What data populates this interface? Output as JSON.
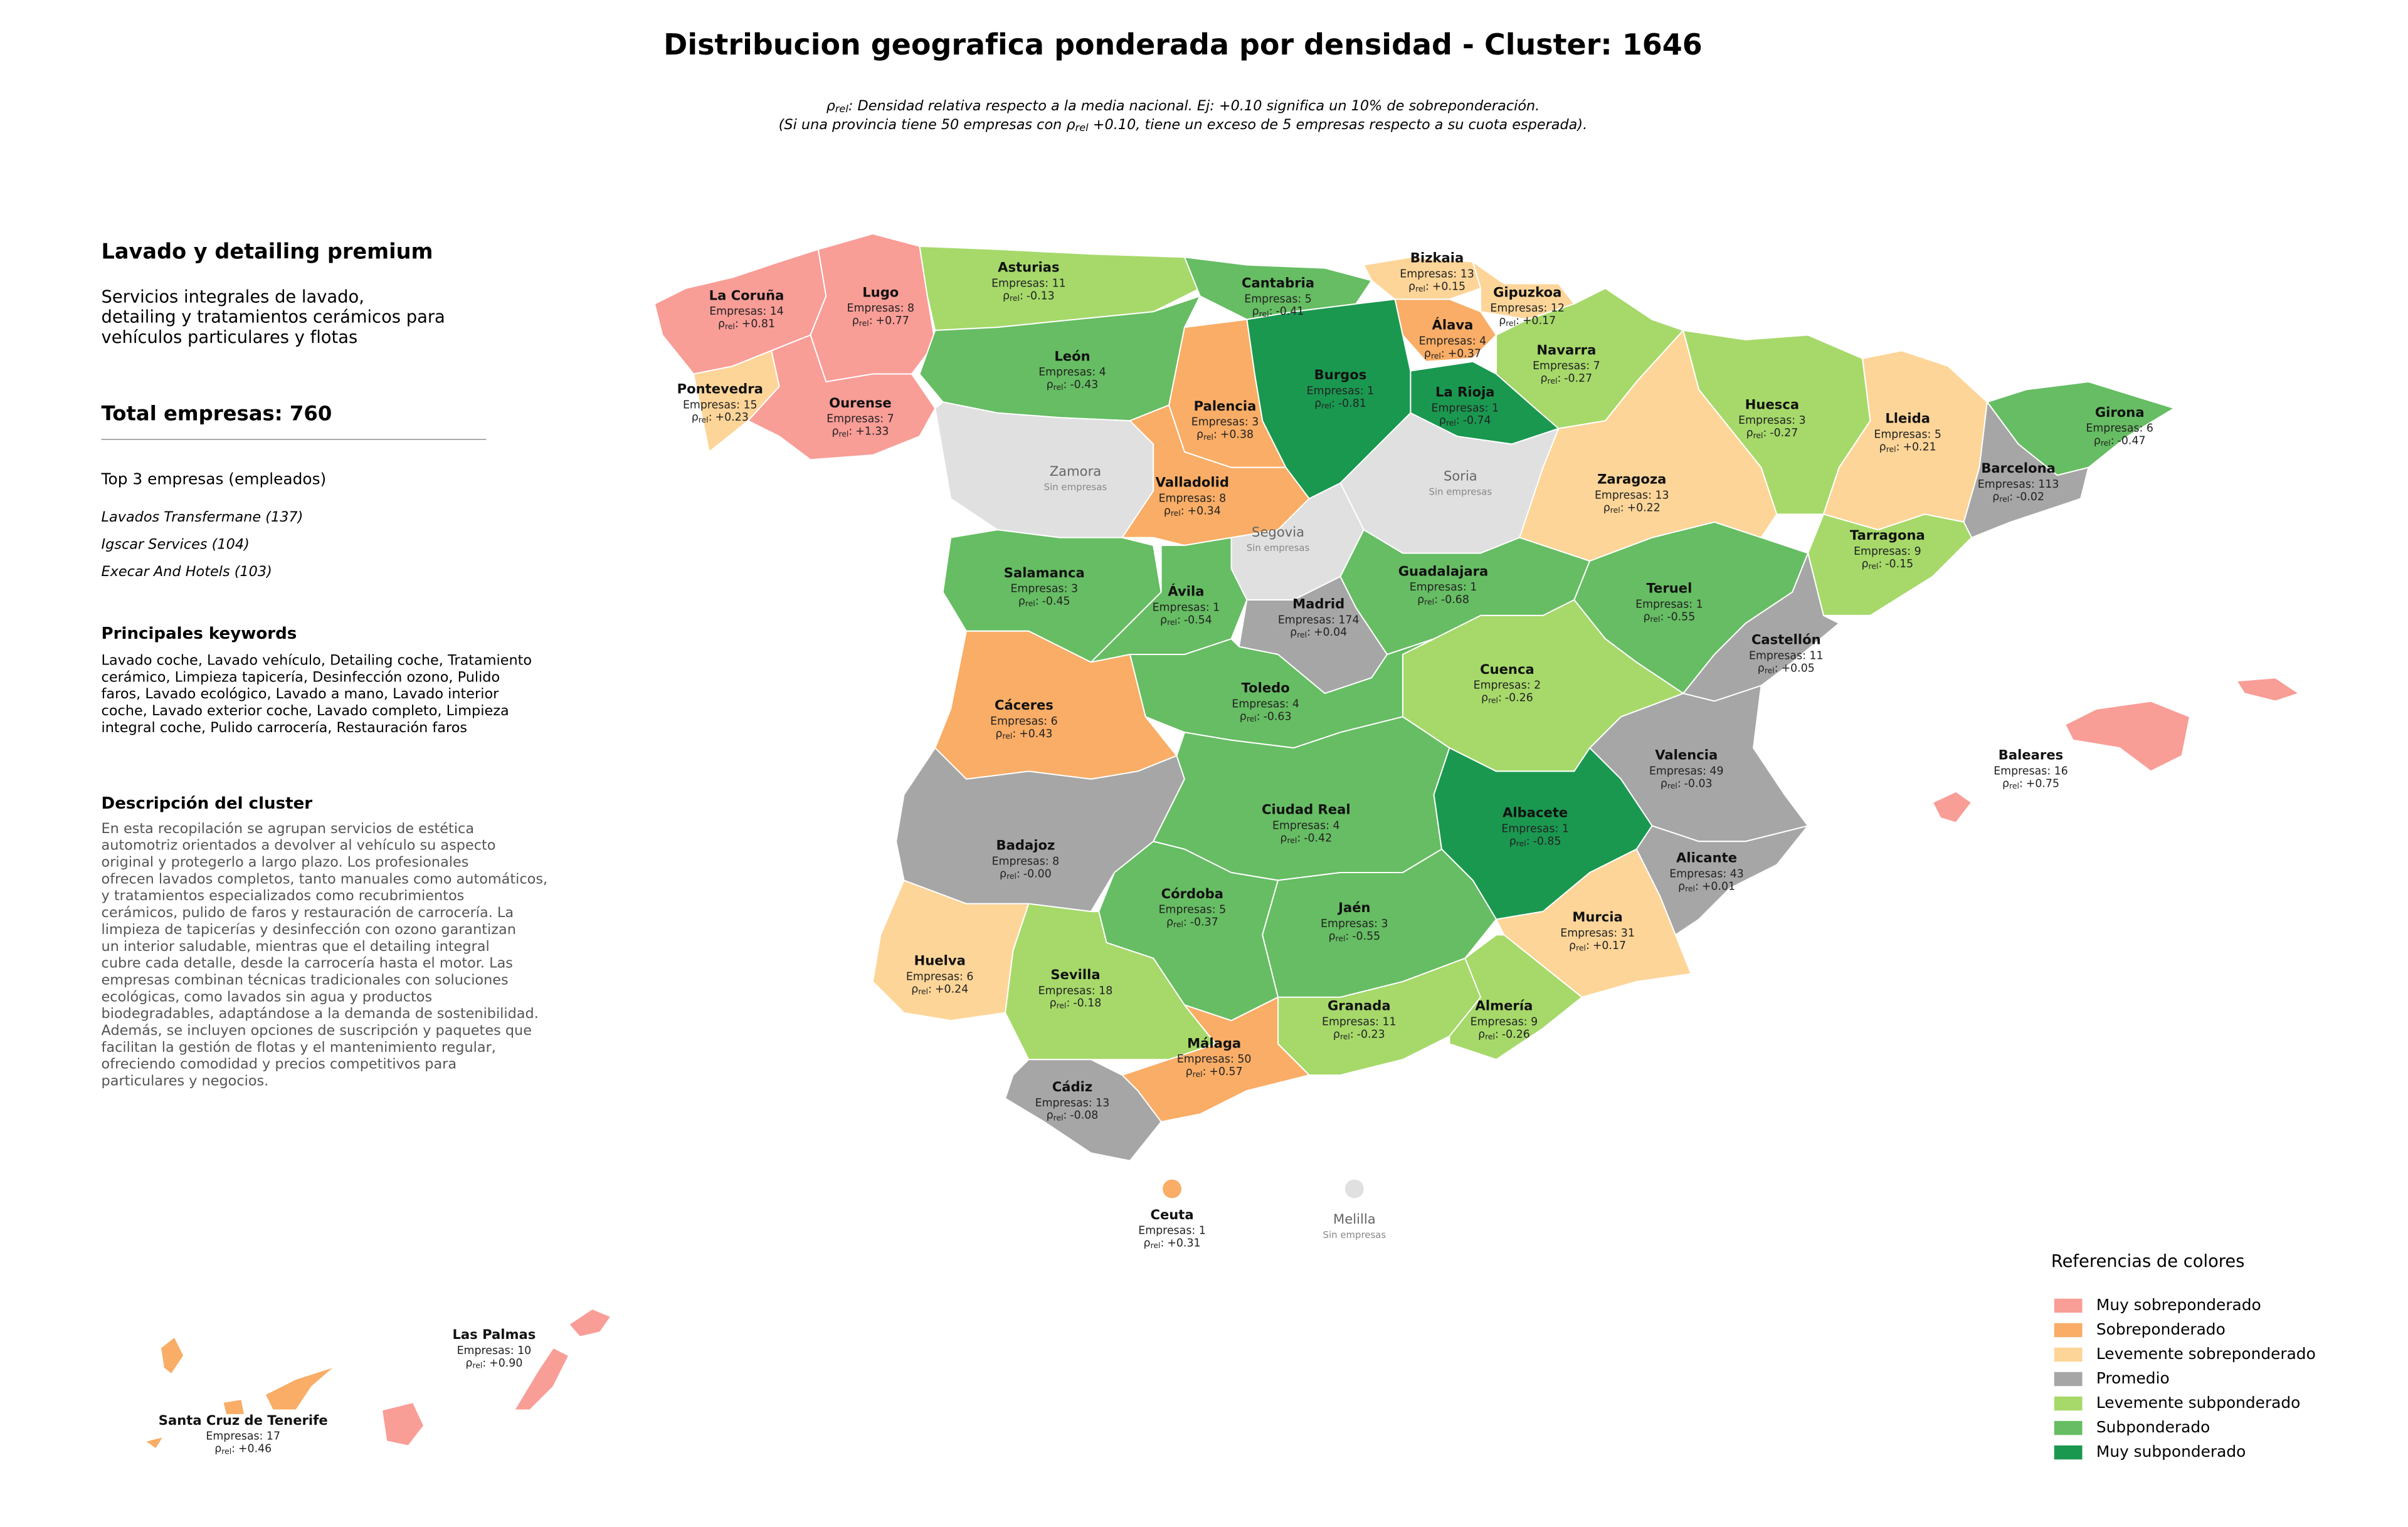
{
  "title": "Distribucion geografica ponderada por densidad - Cluster: 1646",
  "rho_symbol": "ρ",
  "rho_subscript": "rel",
  "rho_colon": ":",
  "subtitle": {
    "line1": ": Densidad relativa respecto a la media nacional. Ej: +0.10 significa un 10% de sobreponderación.",
    "line2_a": "(Si una provincia tiene 50 empresas con ",
    "line2_b": " +0.10, tiene un exceso de 5 empresas respecto a su cuota esperada)."
  },
  "panel": {
    "title": "Lavado y detailing premium",
    "description": [
      "Servicios integrales de lavado,",
      "detailing y tratamientos cerámicos para",
      "vehículos particulares y flotas"
    ],
    "total": "Total empresas: 760",
    "top_title": "Top 3 empresas (empleados)",
    "top": [
      "Lavados Transfermane (137)",
      "Igscar Services (104)",
      "Execar And Hotels (103)"
    ],
    "keywords_title": "Principales keywords",
    "keywords": [
      "Lavado coche, Lavado vehículo, Detailing coche, Tratamiento",
      "cerámico, Limpieza tapicería, Desinfección ozono, Pulido",
      "faros, Lavado ecológico, Lavado a mano, Lavado interior",
      "coche, Lavado exterior coche, Lavado completo, Limpieza",
      "integral coche, Pulido carrocería, Restauración faros"
    ],
    "cluster_title": "Descripción del cluster",
    "cluster_text": [
      "En esta recopilación se agrupan servicios de estética",
      "automotriz orientados a devolver al vehículo su aspecto",
      "original y protegerlo a largo plazo. Los profesionales",
      "ofrecen lavados completos, tanto manuales como automáticos,",
      "y tratamientos especializados como recubrimientos",
      "cerámicos, pulido de faros y restauración de carrocería. La",
      "limpieza de tapicerías y desinfección con ozono garantizan",
      "un interior saludable, mientras que el detailing integral",
      "cubre cada detalle, desde la carrocería hasta el motor. Las",
      "empresas combinan técnicas tradicionales con soluciones",
      "ecológicas, como lavados sin agua y productos",
      "biodegradables, adaptándose a la demanda de sostenibilidad.",
      "Además, se incluyen opciones de suscripción y paquetes que",
      "facilitan la gestión de flotas y el mantenimiento regular,",
      "ofreciendo comodidad y precios competitivos para",
      "particulares y negocios."
    ]
  },
  "provinces": [
    {
      "name": "La Coruña",
      "companies": "Empresas: 14",
      "rho": "+0.81",
      "color": "#f99d97"
    },
    {
      "name": "Lugo",
      "companies": "Empresas: 8",
      "rho": "+0.77",
      "color": "#f99d97"
    },
    {
      "name": "Asturias",
      "companies": "Empresas: 11",
      "rho": "-0.13",
      "color": "#a6d96a"
    },
    {
      "name": "Cantabria",
      "companies": "Empresas: 5",
      "rho": "-0.41",
      "color": "#66bd63"
    },
    {
      "name": "Bizkaia",
      "companies": "Empresas: 13",
      "rho": "+0.15",
      "color": "#fdd598"
    },
    {
      "name": "Gipuzkoa",
      "companies": "Empresas: 12",
      "rho": "+0.17",
      "color": "#fdd598"
    },
    {
      "name": "Álava",
      "companies": "Empresas: 4",
      "rho": "+0.37",
      "color": "#f9ad66"
    },
    {
      "name": "Navarra",
      "companies": "Empresas: 7",
      "rho": "-0.27",
      "color": "#a6d96a"
    },
    {
      "name": "La Rioja",
      "companies": "Empresas: 1",
      "rho": "-0.74",
      "color": "#1a9850"
    },
    {
      "name": "Burgos",
      "companies": "Empresas: 1",
      "rho": "-0.81",
      "color": "#1a9850"
    },
    {
      "name": "Palencia",
      "companies": "Empresas: 3",
      "rho": "+0.38",
      "color": "#f9ad66"
    },
    {
      "name": "León",
      "companies": "Empresas: 4",
      "rho": "-0.43",
      "color": "#66bd63"
    },
    {
      "name": "Pontevedra",
      "companies": "Empresas: 15",
      "rho": "+0.23",
      "color": "#fdd598"
    },
    {
      "name": "Ourense",
      "companies": "Empresas: 7",
      "rho": "+1.33",
      "color": "#f99d97"
    },
    {
      "name": "Zamora",
      "note": "Sin empresas",
      "color": "#e0e0e0"
    },
    {
      "name": "Valladolid",
      "companies": "Empresas: 8",
      "rho": "+0.34",
      "color": "#f9ad66"
    },
    {
      "name": "Soria",
      "note": "Sin empresas",
      "color": "#e0e0e0"
    },
    {
      "name": "Segovia",
      "note": "Sin empresas",
      "color": "#e0e0e0"
    },
    {
      "name": "Salamanca",
      "companies": "Empresas: 3",
      "rho": "-0.45",
      "color": "#66bd63"
    },
    {
      "name": "Ávila",
      "companies": "Empresas: 1",
      "rho": "-0.54",
      "color": "#66bd63"
    },
    {
      "name": "Madrid",
      "companies": "Empresas: 174",
      "rho": "+0.04",
      "color": "#a6a6a6"
    },
    {
      "name": "Guadalajara",
      "companies": "Empresas: 1",
      "rho": "-0.68",
      "color": "#66bd63"
    },
    {
      "name": "Teruel",
      "companies": "Empresas: 1",
      "rho": "-0.55",
      "color": "#66bd63"
    },
    {
      "name": "Zaragoza",
      "companies": "Empresas: 13",
      "rho": "+0.22",
      "color": "#fdd598"
    },
    {
      "name": "Huesca",
      "companies": "Empresas: 3",
      "rho": "-0.27",
      "color": "#a6d96a"
    },
    {
      "name": "Lleida",
      "companies": "Empresas: 5",
      "rho": "+0.21",
      "color": "#fdd598"
    },
    {
      "name": "Girona",
      "companies": "Empresas: 6",
      "rho": "-0.47",
      "color": "#66bd63"
    },
    {
      "name": "Barcelona",
      "companies": "Empresas: 113",
      "rho": "-0.02",
      "color": "#a6a6a6"
    },
    {
      "name": "Tarragona",
      "companies": "Empresas: 9",
      "rho": "-0.15",
      "color": "#a6d96a"
    },
    {
      "name": "Castellón",
      "companies": "Empresas: 11",
      "rho": "+0.05",
      "color": "#a6a6a6"
    },
    {
      "name": "Valencia",
      "companies": "Empresas: 49",
      "rho": "-0.03",
      "color": "#a6a6a6"
    },
    {
      "name": "Cuenca",
      "companies": "Empresas: 2",
      "rho": "-0.26",
      "color": "#a6d96a"
    },
    {
      "name": "Toledo",
      "companies": "Empresas: 4",
      "rho": "-0.63",
      "color": "#66bd63"
    },
    {
      "name": "Cáceres",
      "companies": "Empresas: 6",
      "rho": "+0.43",
      "color": "#f9ad66"
    },
    {
      "name": "Badajoz",
      "companies": "Empresas: 8",
      "rho": "-0.00",
      "color": "#a6a6a6"
    },
    {
      "name": "Ciudad Real",
      "companies": "Empresas: 4",
      "rho": "-0.42",
      "color": "#66bd63"
    },
    {
      "name": "Albacete",
      "companies": "Empresas: 1",
      "rho": "-0.85",
      "color": "#1a9850"
    },
    {
      "name": "Alicante",
      "companies": "Empresas: 43",
      "rho": "+0.01",
      "color": "#a6a6a6"
    },
    {
      "name": "Murcia",
      "companies": "Empresas: 31",
      "rho": "+0.17",
      "color": "#fdd598"
    },
    {
      "name": "Córdoba",
      "companies": "Empresas: 5",
      "rho": "-0.37",
      "color": "#66bd63"
    },
    {
      "name": "Jaén",
      "companies": "Empresas: 3",
      "rho": "-0.55",
      "color": "#66bd63"
    },
    {
      "name": "Huelva",
      "companies": "Empresas: 6",
      "rho": "+0.24",
      "color": "#fdd598"
    },
    {
      "name": "Sevilla",
      "companies": "Empresas: 18",
      "rho": "-0.18",
      "color": "#a6d96a"
    },
    {
      "name": "Granada",
      "companies": "Empresas: 11",
      "rho": "-0.23",
      "color": "#a6d96a"
    },
    {
      "name": "Almería",
      "companies": "Empresas: 9",
      "rho": "-0.26",
      "color": "#a6d96a"
    },
    {
      "name": "Málaga",
      "companies": "Empresas: 50",
      "rho": "+0.57",
      "color": "#f9ad66"
    },
    {
      "name": "Cádiz",
      "companies": "Empresas: 13",
      "rho": "-0.08",
      "color": "#a6a6a6"
    },
    {
      "name": "Baleares",
      "companies": "Empresas: 16",
      "rho": "+0.75",
      "color": "#f99d97"
    },
    {
      "name": "Ceuta",
      "companies": "Empresas: 1",
      "rho": "+0.31",
      "color": "#f9ad66"
    },
    {
      "name": "Melilla",
      "note": "Sin empresas",
      "color": "#e0e0e0"
    },
    {
      "name": "Las Palmas",
      "companies": "Empresas: 10",
      "rho": "+0.90",
      "color": "#f99d97"
    },
    {
      "name": "Santa Cruz de Tenerife",
      "companies": "Empresas: 17",
      "rho": "+0.46",
      "color": "#f9ad66"
    }
  ],
  "legend": {
    "title": "Referencias de colores",
    "items": [
      {
        "name": "Muy sobreponderado",
        "color": "#f99d97"
      },
      {
        "name": "Sobreponderado",
        "color": "#f9ad66"
      },
      {
        "name": "Levemente sobreponderado",
        "color": "#fdd598"
      },
      {
        "name": "Promedio",
        "color": "#a6a6a6"
      },
      {
        "name": "Levemente subponderado",
        "color": "#a6d96a"
      },
      {
        "name": "Subponderado",
        "color": "#66bd63"
      },
      {
        "name": "Muy subponderado",
        "color": "#1a9850"
      }
    ]
  }
}
